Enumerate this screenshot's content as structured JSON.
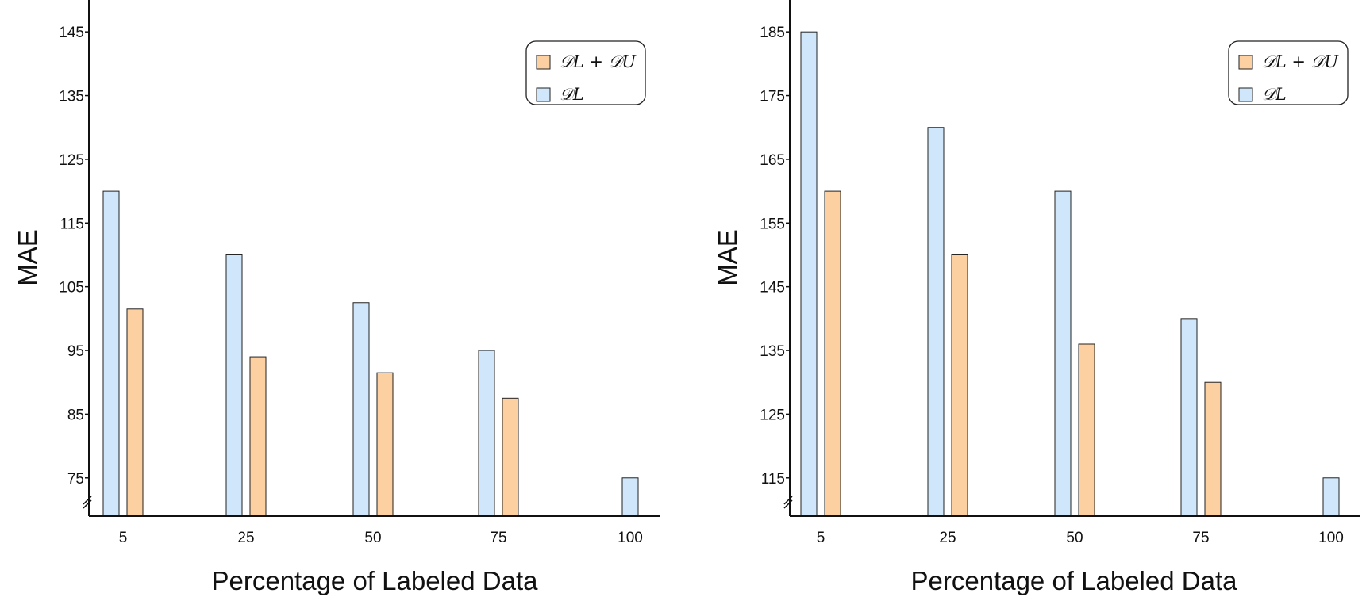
{
  "chart_data": [
    {
      "type": "bar",
      "categories": [
        "5",
        "25",
        "50",
        "75",
        "100"
      ],
      "series": [
        {
          "name": "𝒟L",
          "values": [
            120,
            110,
            102.5,
            95,
            75
          ],
          "color": "#cfe6fb"
        },
        {
          "name": "𝒟L + 𝒟U",
          "values": [
            101.5,
            94,
            91.5,
            87.5,
            null
          ],
          "color": "#fdd0a2"
        }
      ],
      "xlabel": "Percentage of Labeled Data",
      "ylabel": "MAE",
      "yticks": [
        75,
        85,
        95,
        105,
        115,
        125,
        135,
        145
      ],
      "ylim": [
        69,
        150
      ],
      "legend_order": [
        1,
        0
      ],
      "legend_placement": "top-right",
      "axis_break": true
    },
    {
      "type": "bar",
      "categories": [
        "5",
        "25",
        "50",
        "75",
        "100"
      ],
      "series": [
        {
          "name": "𝒟L",
          "values": [
            185,
            170,
            160,
            140,
            115
          ],
          "color": "#cfe6fb"
        },
        {
          "name": "𝒟L + 𝒟U",
          "values": [
            160,
            150,
            136,
            130,
            null
          ],
          "color": "#fdd0a2"
        }
      ],
      "xlabel": "Percentage of Labeled Data",
      "ylabel": "MAE",
      "yticks": [
        115,
        125,
        135,
        145,
        155,
        165,
        175,
        185
      ],
      "ylim": [
        109,
        190
      ],
      "legend_order": [
        1,
        0
      ],
      "legend_placement": "top-right",
      "axis_break": true
    }
  ]
}
